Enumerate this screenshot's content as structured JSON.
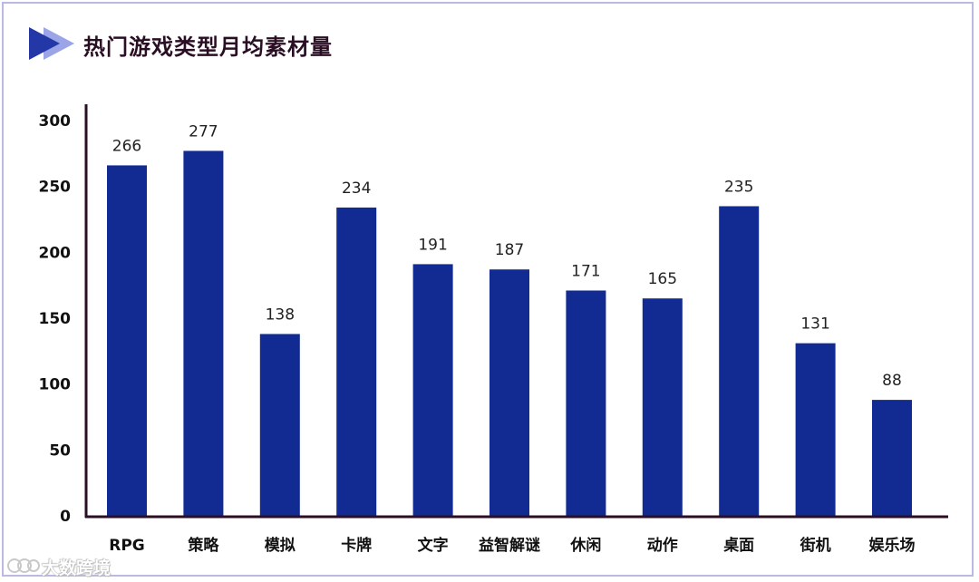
{
  "colors": {
    "bar": "#112b93",
    "axis": "#2a0f24",
    "title": "#2a0f24",
    "frame": "#b9b9e4",
    "arrow_dark": "#2338a6",
    "arrow_light": "#9aa4e6"
  },
  "header": {
    "title": "热门游戏类型月均素材量"
  },
  "watermark": {
    "text": "大数跨境"
  },
  "chart_data": {
    "type": "bar",
    "title": "热门游戏类型月均素材量",
    "categories": [
      "RPG",
      "策略",
      "模拟",
      "卡牌",
      "文字",
      "益智解谜",
      "休闲",
      "动作",
      "桌面",
      "街机",
      "娱乐场"
    ],
    "values": [
      266,
      277,
      138,
      234,
      191,
      187,
      171,
      165,
      235,
      131,
      88
    ],
    "ylim": [
      0,
      300
    ],
    "yticks": [
      0,
      50,
      100,
      150,
      200,
      250,
      300
    ],
    "grid": false,
    "legend": "none",
    "data_labels": true
  }
}
